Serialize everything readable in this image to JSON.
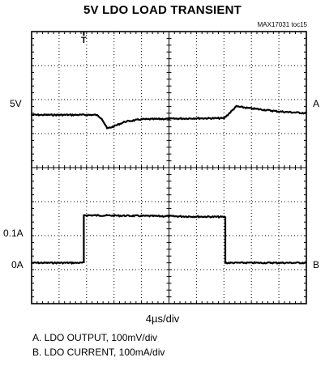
{
  "chart_data": {
    "type": "line",
    "title": "5V LDO LOAD TRANSIENT",
    "figure_id": "MAX17031 toc15",
    "x_scale_label": "4µs/div",
    "x_divisions": 10,
    "y_divisions": 8,
    "grid": true,
    "trigger_marker": "T",
    "left_labels": [
      "5V",
      "0.1A",
      "0A"
    ],
    "right_labels": [
      "A",
      "B"
    ],
    "legend": [
      "A. LDO OUTPUT, 100mV/div",
      "B. LDO CURRENT, 100mA/div"
    ],
    "series": [
      {
        "name": "A",
        "level_div": 5.55,
        "points": [
          [
            0,
            5.55
          ],
          [
            2.35,
            5.55
          ],
          [
            2.55,
            5.45
          ],
          [
            2.75,
            5.15
          ],
          [
            2.95,
            5.2
          ],
          [
            3.4,
            5.35
          ],
          [
            4,
            5.42
          ],
          [
            6,
            5.45
          ],
          [
            7.0,
            5.45
          ],
          [
            7.2,
            5.6
          ],
          [
            7.45,
            5.8
          ],
          [
            7.9,
            5.75
          ],
          [
            9,
            5.65
          ],
          [
            10,
            5.6
          ]
        ]
      },
      {
        "name": "B",
        "level_div": 1.2,
        "points": [
          [
            0,
            1.2
          ],
          [
            1.9,
            1.2
          ],
          [
            1.9,
            2.6
          ],
          [
            7.05,
            2.55
          ],
          [
            7.05,
            1.2
          ],
          [
            10,
            1.2
          ]
        ]
      }
    ]
  }
}
